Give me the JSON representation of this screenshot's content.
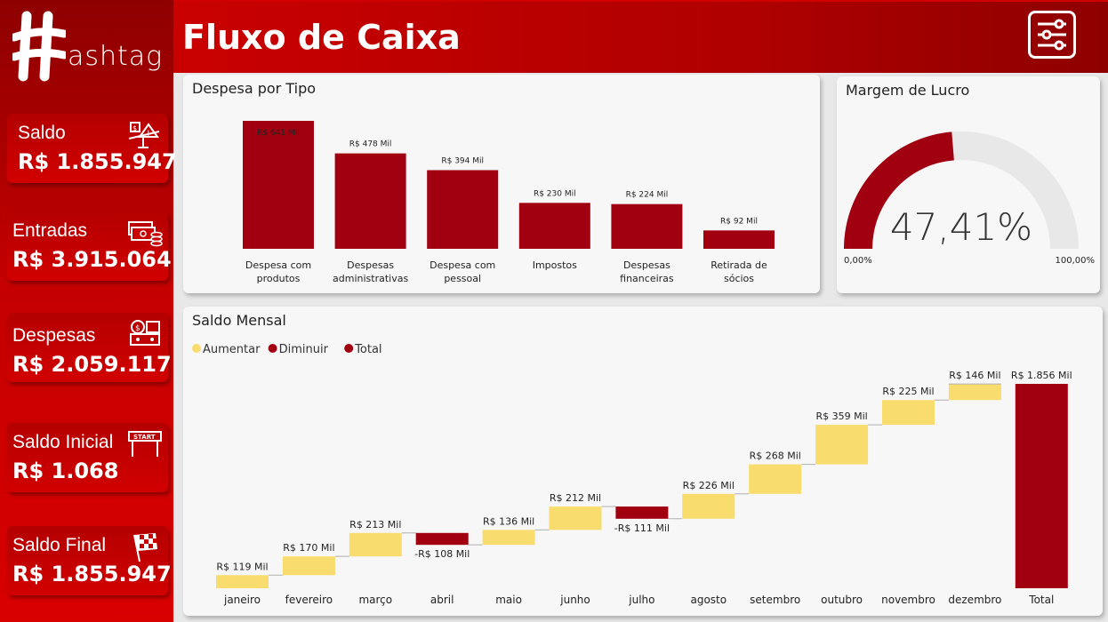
{
  "app": {
    "logo_text": "ashtag",
    "title": "Fluxo de Caixa"
  },
  "colors": {
    "accent": "#a00010",
    "increase": "#f9dc6e",
    "gauge_bg": "#e8e8e8"
  },
  "kpis": [
    {
      "label": "Saldo",
      "value": "R$ 1.855.947",
      "icon": "balance-scale-icon"
    },
    {
      "label": "Entradas",
      "value": "R$ 3.915.064",
      "icon": "cash-coins-icon"
    },
    {
      "label": "Despesas",
      "value": "R$ 2.059.117",
      "icon": "cash-machine-icon"
    },
    {
      "label": "Saldo Inicial",
      "value": "R$ 1.068",
      "icon": "start-banner-icon"
    },
    {
      "label": "Saldo Final",
      "value": "R$ 1.855.947",
      "icon": "checkered-flag-icon"
    }
  ],
  "expense_chart": {
    "title": "Despesa por Tipo"
  },
  "margin_gauge": {
    "title": "Margem de Lucro",
    "value_label": "47,41%",
    "min_label": "0,00%",
    "max_label": "100,00%"
  },
  "monthly_chart": {
    "title": "Saldo Mensal",
    "legend": [
      {
        "label": "Aumentar",
        "color": "#f9dc6e"
      },
      {
        "label": "Diminuir",
        "color": "#a00010"
      },
      {
        "label": "Total",
        "color": "#a00010"
      }
    ]
  },
  "chart_data": [
    {
      "type": "bar",
      "title": "Despesa por Tipo",
      "categories": [
        "Despesa com produtos",
        "Despesas administrativas",
        "Despesa com pessoal",
        "Impostos",
        "Despesas financeiras",
        "Retirada de sócios"
      ],
      "values": [
        641,
        478,
        394,
        230,
        224,
        92
      ],
      "labels": [
        "R$ 641 Mil",
        "R$ 478 Mil",
        "R$ 394 Mil",
        "R$ 230 Mil",
        "R$ 224 Mil",
        "R$ 92 Mil"
      ],
      "ylim": [
        0,
        641
      ]
    },
    {
      "type": "gauge",
      "title": "Margem de Lucro",
      "value": 47.41,
      "min": 0,
      "max": 100
    },
    {
      "type": "waterfall",
      "title": "Saldo Mensal",
      "categories": [
        "janeiro",
        "fevereiro",
        "março",
        "abril",
        "maio",
        "junho",
        "julho",
        "agosto",
        "setembro",
        "outubro",
        "novembro",
        "dezembro",
        "Total"
      ],
      "values": [
        119,
        170,
        213,
        -108,
        136,
        212,
        -111,
        226,
        268,
        359,
        225,
        146,
        1856
      ],
      "labels": [
        "R$ 119 Mil",
        "R$ 170 Mil",
        "R$ 213 Mil",
        "-R$ 108 Mil",
        "R$ 136 Mil",
        "R$ 212 Mil",
        "-R$ 111 Mil",
        "R$ 226 Mil",
        "R$ 268 Mil",
        "R$ 359 Mil",
        "R$ 225 Mil",
        "R$ 146 Mil",
        "R$ 1.856 Mil"
      ],
      "series": [
        {
          "name": "Aumentar"
        },
        {
          "name": "Diminuir"
        },
        {
          "name": "Total"
        }
      ]
    }
  ]
}
